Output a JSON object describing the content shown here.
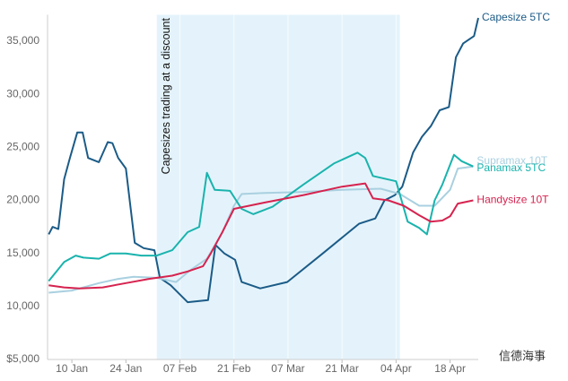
{
  "chart_data": {
    "type": "line",
    "annotation": "Capesizes trading at a discount",
    "shade": [
      32,
      95
    ],
    "watermark": "信德海事",
    "xlim": [
      3.7,
      115.3
    ],
    "xticks": [
      {
        "value": 10,
        "label": "10 Jan"
      },
      {
        "value": 24,
        "label": "24 Jan"
      },
      {
        "value": 38,
        "label": "07 Feb"
      },
      {
        "value": 52,
        "label": "21 Feb"
      },
      {
        "value": 66,
        "label": "07 Mar"
      },
      {
        "value": 80,
        "label": "21 Mar"
      },
      {
        "value": 94,
        "label": "04 Apr"
      },
      {
        "value": 108,
        "label": "18 Apr"
      }
    ],
    "ylim": [
      5000,
      37500
    ],
    "yticks": [
      {
        "value": 5000,
        "label": "$5,000"
      },
      {
        "value": 10000,
        "label": "10,000"
      },
      {
        "value": 15000,
        "label": "15,000"
      },
      {
        "value": 20000,
        "label": "20,000"
      },
      {
        "value": 25000,
        "label": "25,000"
      },
      {
        "value": 30000,
        "label": "30,000"
      },
      {
        "value": 35000,
        "label": "35,000"
      }
    ],
    "series": [
      {
        "name": "Capesize 5TC",
        "color": "#1b5b87",
        "x": [
          4,
          5,
          6.5,
          8,
          9.5,
          11.4,
          12.8,
          14.2,
          17,
          19.3,
          20.5,
          22,
          24,
          26.3,
          28.6,
          31.4,
          32.8,
          35.6,
          40,
          45.3,
          47.2,
          49.5,
          52.3,
          54,
          58.8,
          65.8,
          75,
          84.4,
          88.6,
          91,
          93.7,
          95.6,
          98.4,
          100.7,
          103,
          105.3,
          107.7,
          109.5,
          111.4,
          114.2,
          115.3
        ],
        "values": [
          16800,
          17500,
          17300,
          22000,
          24000,
          26400,
          26400,
          24000,
          23600,
          25500,
          25400,
          24000,
          23000,
          16000,
          15500,
          15300,
          12700,
          12000,
          10400,
          10600,
          15800,
          15000,
          14400,
          12300,
          11700,
          12300,
          15000,
          17800,
          18300,
          20000,
          20500,
          21300,
          24500,
          26000,
          27000,
          28500,
          28800,
          33500,
          34800,
          35500,
          37200
        ]
      },
      {
        "name": "Supramax 10T",
        "color": "#a9d0e0",
        "x": [
          4,
          10,
          17,
          22,
          26,
          32,
          37,
          41,
          45,
          49,
          52,
          54,
          60,
          70,
          80,
          90,
          95,
          100,
          104,
          108,
          110,
          114
        ],
        "values": [
          11300,
          11500,
          12200,
          12600,
          12800,
          12700,
          12300,
          13500,
          14500,
          17000,
          19500,
          20600,
          20700,
          20800,
          21000,
          21100,
          20600,
          19500,
          19500,
          21000,
          23000,
          23200
        ]
      },
      {
        "name": "Panamax 5TC",
        "color": "#1ab3ad",
        "x": [
          4,
          8,
          11,
          13,
          17,
          20,
          24,
          28,
          32,
          36,
          40,
          43,
          45,
          47,
          51,
          54,
          57,
          62,
          70,
          78,
          84,
          86,
          88,
          94,
          97,
          100,
          102,
          104,
          106,
          109,
          111,
          114
        ],
        "values": [
          12400,
          14200,
          14800,
          14600,
          14500,
          15000,
          15000,
          14800,
          14800,
          15300,
          17000,
          17500,
          22600,
          21000,
          20900,
          19200,
          18700,
          19400,
          21500,
          23500,
          24500,
          24000,
          22300,
          21800,
          18000,
          17400,
          16800,
          20000,
          21500,
          24300,
          23700,
          23200
        ]
      },
      {
        "name": "Handysize 10T",
        "color": "#d6234f",
        "x": [
          4,
          8,
          12,
          18,
          24,
          30,
          36,
          40,
          44,
          46,
          49,
          52,
          60,
          70,
          80,
          86,
          88,
          92,
          96,
          100,
          103,
          106,
          108,
          110,
          114
        ],
        "values": [
          12000,
          11800,
          11700,
          11800,
          12200,
          12600,
          12900,
          13300,
          13800,
          15000,
          17000,
          19200,
          19800,
          20500,
          21300,
          21600,
          20200,
          20000,
          19500,
          18600,
          18000,
          18100,
          18500,
          19700,
          20000
        ]
      }
    ]
  }
}
